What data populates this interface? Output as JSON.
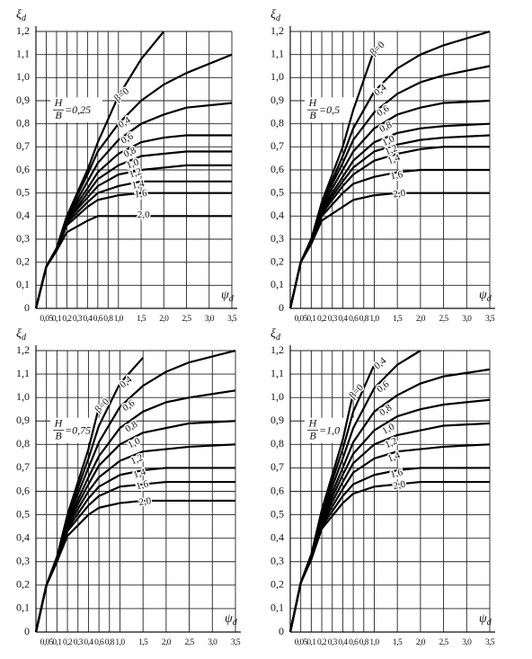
{
  "chart_data": [
    {
      "type": "line",
      "ylabel": "ξ",
      "ylabel_subscript": "d",
      "xlabel": "ψ",
      "xlabel_subscript": "d",
      "ratio_top": "H",
      "ratio_bottom": "B",
      "ratio_value": "=0,25",
      "color": "#000",
      "grid": true,
      "xlim": [
        0,
        3.5
      ],
      "ylim": [
        0,
        1.2
      ],
      "xticks": [
        {
          "value": 0.05,
          "label": "0,05"
        },
        {
          "value": 0.1,
          "label": "0,1"
        },
        {
          "value": 0.2,
          "label": "0,2"
        },
        {
          "value": 0.3,
          "label": "0,3"
        },
        {
          "value": 0.4,
          "label": "0,4"
        },
        {
          "value": 0.6,
          "label": "0,6"
        },
        {
          "value": 0.8,
          "label": "0,8"
        },
        {
          "value": 1.0,
          "label": "1,0"
        },
        {
          "value": 1.5,
          "label": "1,5"
        },
        {
          "value": 2.0,
          "label": "2,0"
        },
        {
          "value": 2.5,
          "label": "2,5"
        },
        {
          "value": 3.0,
          "label": "3,0"
        },
        {
          "value": 3.5,
          "label": "3,5"
        }
      ],
      "yticks": [
        0,
        {
          "value": 0.1,
          "label": "0,1"
        },
        {
          "value": 0.2,
          "label": "0,2"
        },
        {
          "value": 0.3,
          "label": "0,3"
        },
        {
          "value": 0.4,
          "label": "0,4"
        },
        {
          "value": 0.5,
          "label": "0,5"
        },
        {
          "value": 0.6,
          "label": "0,6"
        },
        {
          "value": 0.7,
          "label": "0,7"
        },
        {
          "value": 0.8,
          "label": "0,8"
        },
        {
          "value": 0.9,
          "label": "0,9"
        },
        {
          "value": 1.0,
          "label": "1,0"
        },
        {
          "value": 1.1,
          "label": "1,1"
        },
        {
          "value": 1.2,
          "label": "1,2"
        }
      ],
      "x": [
        0,
        0.05,
        0.1,
        0.2,
        0.4,
        0.6,
        1.0,
        1.5,
        2.0,
        2.5,
        3.5
      ],
      "series": [
        {
          "name": "β=0",
          "values": [
            0,
            0.18,
            0.26,
            0.4,
            0.6,
            0.72,
            0.92,
            1.08,
            1.2,
            null,
            null
          ]
        },
        {
          "name": "0,4",
          "values": [
            0,
            0.18,
            0.26,
            0.4,
            0.58,
            0.68,
            0.8,
            0.9,
            0.97,
            1.02,
            1.1
          ]
        },
        {
          "name": "0,6",
          "values": [
            0,
            0.18,
            0.26,
            0.39,
            0.55,
            0.63,
            0.73,
            0.8,
            0.84,
            0.87,
            0.89
          ]
        },
        {
          "name": "0,8",
          "values": [
            0,
            0.18,
            0.26,
            0.39,
            0.52,
            0.59,
            0.67,
            0.72,
            0.74,
            0.75,
            0.75
          ]
        },
        {
          "name": "1,0",
          "values": [
            0,
            0.18,
            0.26,
            0.38,
            0.5,
            0.56,
            0.62,
            0.66,
            0.67,
            0.68,
            0.68
          ]
        },
        {
          "name": "1,2",
          "values": [
            0,
            0.18,
            0.26,
            0.38,
            0.48,
            0.53,
            0.58,
            0.6,
            0.61,
            0.62,
            0.62
          ]
        },
        {
          "name": "1,4",
          "values": [
            0,
            0.18,
            0.25,
            0.37,
            0.46,
            0.5,
            0.53,
            0.55,
            0.55,
            0.55,
            0.55
          ]
        },
        {
          "name": "1,6",
          "values": [
            0,
            0.18,
            0.25,
            0.36,
            0.44,
            0.47,
            0.49,
            0.5,
            0.5,
            0.5,
            0.5
          ]
        },
        {
          "name": "2,0",
          "values": [
            0,
            0.18,
            0.25,
            0.33,
            0.38,
            0.4,
            0.4,
            0.4,
            0.4,
            0.4,
            0.4
          ]
        }
      ]
    },
    {
      "type": "line",
      "ylabel": "ξ",
      "ylabel_subscript": "d",
      "xlabel": "ψ",
      "xlabel_subscript": "d",
      "ratio_top": "H",
      "ratio_bottom": "B",
      "ratio_value": "=0,5",
      "color": "#000",
      "grid": true,
      "xlim": [
        0,
        3.5
      ],
      "ylim": [
        0,
        1.2
      ],
      "xticks": [
        {
          "value": 0.05,
          "label": "0,05"
        },
        {
          "value": 0.1,
          "label": "0,1"
        },
        {
          "value": 0.2,
          "label": "0,2"
        },
        {
          "value": 0.3,
          "label": "0,3"
        },
        {
          "value": 0.4,
          "label": "0,4"
        },
        {
          "value": 0.6,
          "label": "0,6"
        },
        {
          "value": 0.8,
          "label": "0,8"
        },
        {
          "value": 1.0,
          "label": "1,0"
        },
        {
          "value": 1.5,
          "label": "1,5"
        },
        {
          "value": 2.0,
          "label": "2,0"
        },
        {
          "value": 2.5,
          "label": "2,5"
        },
        {
          "value": 3.0,
          "label": "3,0"
        },
        {
          "value": 3.5,
          "label": "3,5"
        }
      ],
      "yticks": [
        0,
        {
          "value": 0.1,
          "label": "0,1"
        },
        {
          "value": 0.2,
          "label": "0,2"
        },
        {
          "value": 0.3,
          "label": "0,3"
        },
        {
          "value": 0.4,
          "label": "0,4"
        },
        {
          "value": 0.5,
          "label": "0,5"
        },
        {
          "value": 0.6,
          "label": "0,6"
        },
        {
          "value": 0.7,
          "label": "0,7"
        },
        {
          "value": 0.8,
          "label": "0,8"
        },
        {
          "value": 0.9,
          "label": "0,9"
        },
        {
          "value": 1.0,
          "label": "1,0"
        },
        {
          "value": 1.1,
          "label": "1,1"
        },
        {
          "value": 1.2,
          "label": "1,2"
        }
      ],
      "x": [
        0,
        0.05,
        0.1,
        0.2,
        0.4,
        0.6,
        1.0,
        1.5,
        2.0,
        2.5,
        3.5
      ],
      "series": [
        {
          "name": "β=0",
          "values": [
            0,
            0.2,
            0.3,
            0.46,
            0.7,
            0.86,
            1.12,
            null,
            null,
            null,
            null
          ]
        },
        {
          "name": "0,4",
          "values": [
            0,
            0.2,
            0.3,
            0.45,
            0.66,
            0.78,
            0.94,
            1.04,
            1.1,
            1.14,
            1.2
          ]
        },
        {
          "name": "0,6",
          "values": [
            0,
            0.2,
            0.3,
            0.45,
            0.63,
            0.73,
            0.85,
            0.93,
            0.98,
            1.01,
            1.05
          ]
        },
        {
          "name": "0,8",
          "values": [
            0,
            0.2,
            0.3,
            0.44,
            0.6,
            0.68,
            0.78,
            0.84,
            0.87,
            0.89,
            0.9
          ]
        },
        {
          "name": "1,0",
          "values": [
            0,
            0.2,
            0.29,
            0.43,
            0.57,
            0.64,
            0.72,
            0.76,
            0.78,
            0.79,
            0.8
          ]
        },
        {
          "name": "1,2",
          "values": [
            0,
            0.2,
            0.29,
            0.42,
            0.55,
            0.61,
            0.68,
            0.71,
            0.73,
            0.74,
            0.75
          ]
        },
        {
          "name": "1,4",
          "values": [
            0,
            0.2,
            0.29,
            0.41,
            0.53,
            0.58,
            0.64,
            0.67,
            0.69,
            0.7,
            0.7
          ]
        },
        {
          "name": "1,6",
          "values": [
            0,
            0.2,
            0.28,
            0.4,
            0.5,
            0.54,
            0.57,
            0.59,
            0.6,
            0.6,
            0.6
          ]
        },
        {
          "name": "2,0",
          "values": [
            0,
            0.2,
            0.28,
            0.38,
            0.44,
            0.47,
            0.49,
            0.5,
            0.5,
            0.5,
            0.5
          ]
        }
      ]
    },
    {
      "type": "line",
      "ylabel": "ξ",
      "ylabel_subscript": "d",
      "xlabel": "ψ",
      "xlabel_subscript": "d",
      "ratio_top": "H",
      "ratio_bottom": "B",
      "ratio_value": "=0,75",
      "color": "#000",
      "grid": true,
      "xlim": [
        0,
        3.5
      ],
      "ylim": [
        0,
        1.2
      ],
      "xticks": [
        {
          "value": 0.05,
          "label": "0,05"
        },
        {
          "value": 0.1,
          "label": "0,1"
        },
        {
          "value": 0.2,
          "label": "0,2"
        },
        {
          "value": 0.3,
          "label": "0,3"
        },
        {
          "value": 0.4,
          "label": "0,4"
        },
        {
          "value": 0.6,
          "label": "0,6"
        },
        {
          "value": 0.8,
          "label": "0,8"
        },
        {
          "value": 1.0,
          "label": "1,0"
        },
        {
          "value": 1.5,
          "label": "1,5"
        },
        {
          "value": 2.0,
          "label": "2,0"
        },
        {
          "value": 2.5,
          "label": "2,5"
        },
        {
          "value": 3.0,
          "label": "3,0"
        },
        {
          "value": 3.5,
          "label": "3,5"
        }
      ],
      "yticks": [
        0,
        {
          "value": 0.1,
          "label": "0,1"
        },
        {
          "value": 0.2,
          "label": "0,2"
        },
        {
          "value": 0.3,
          "label": "0,3"
        },
        {
          "value": 0.4,
          "label": "0,4"
        },
        {
          "value": 0.5,
          "label": "0,5"
        },
        {
          "value": 0.6,
          "label": "0,6"
        },
        {
          "value": 0.7,
          "label": "0,7"
        },
        {
          "value": 0.8,
          "label": "0,8"
        },
        {
          "value": 0.9,
          "label": "0,9"
        },
        {
          "value": 1.0,
          "label": "1,0"
        },
        {
          "value": 1.1,
          "label": "1,1"
        },
        {
          "value": 1.2,
          "label": "1,2"
        }
      ],
      "x": [
        0,
        0.05,
        0.1,
        0.2,
        0.4,
        0.6,
        1.0,
        1.5,
        2.0,
        2.5,
        3.5
      ],
      "series": [
        {
          "name": "β=0",
          "values": [
            0,
            0.2,
            0.32,
            0.5,
            0.78,
            0.96,
            null,
            null,
            null,
            null,
            null
          ]
        },
        {
          "name": "0,4",
          "values": [
            0,
            0.2,
            0.32,
            0.49,
            0.74,
            0.88,
            1.06,
            1.17,
            null,
            null,
            null
          ]
        },
        {
          "name": "0,6",
          "values": [
            0,
            0.2,
            0.31,
            0.48,
            0.7,
            0.81,
            0.96,
            1.05,
            1.11,
            1.15,
            1.2
          ]
        },
        {
          "name": "0,8",
          "values": [
            0,
            0.2,
            0.31,
            0.47,
            0.66,
            0.75,
            0.87,
            0.94,
            0.98,
            1.0,
            1.03
          ]
        },
        {
          "name": "1,0",
          "values": [
            0,
            0.2,
            0.31,
            0.46,
            0.63,
            0.71,
            0.8,
            0.85,
            0.87,
            0.89,
            0.9
          ]
        },
        {
          "name": "1,2",
          "values": [
            0,
            0.2,
            0.3,
            0.45,
            0.6,
            0.66,
            0.73,
            0.77,
            0.78,
            0.79,
            0.8
          ]
        },
        {
          "name": "1,4",
          "values": [
            0,
            0.2,
            0.3,
            0.44,
            0.57,
            0.62,
            0.67,
            0.69,
            0.7,
            0.7,
            0.7
          ]
        },
        {
          "name": "1,6",
          "values": [
            0,
            0.2,
            0.3,
            0.43,
            0.54,
            0.58,
            0.62,
            0.63,
            0.64,
            0.64,
            0.64
          ]
        },
        {
          "name": "2,0",
          "values": [
            0,
            0.2,
            0.3,
            0.41,
            0.5,
            0.53,
            0.55,
            0.56,
            0.56,
            0.56,
            0.56
          ]
        }
      ]
    },
    {
      "type": "line",
      "ylabel": "ξ",
      "ylabel_subscript": "d",
      "xlabel": "ψ",
      "xlabel_subscript": "d",
      "ratio_top": "H",
      "ratio_bottom": "B",
      "ratio_value": "=1,0",
      "color": "#000",
      "grid": true,
      "xlim": [
        0,
        3.5
      ],
      "ylim": [
        0,
        1.2
      ],
      "xticks": [
        {
          "value": 0.05,
          "label": "0,05"
        },
        {
          "value": 0.1,
          "label": "0,1"
        },
        {
          "value": 0.2,
          "label": "0,2"
        },
        {
          "value": 0.3,
          "label": "0,3"
        },
        {
          "value": 0.4,
          "label": "0,4"
        },
        {
          "value": 0.6,
          "label": "0,6"
        },
        {
          "value": 0.8,
          "label": "0,8"
        },
        {
          "value": 1.0,
          "label": "1,0"
        },
        {
          "value": 1.5,
          "label": "1,5"
        },
        {
          "value": 2.0,
          "label": "2,0"
        },
        {
          "value": 2.5,
          "label": "2,5"
        },
        {
          "value": 3.0,
          "label": "3,0"
        },
        {
          "value": 3.5,
          "label": "3,5"
        }
      ],
      "yticks": [
        0,
        {
          "value": 0.1,
          "label": "0,1"
        },
        {
          "value": 0.2,
          "label": "0,2"
        },
        {
          "value": 0.3,
          "label": "0,3"
        },
        {
          "value": 0.4,
          "label": "0,4"
        },
        {
          "value": 0.5,
          "label": "0,5"
        },
        {
          "value": 0.6,
          "label": "0,6"
        },
        {
          "value": 0.7,
          "label": "0,7"
        },
        {
          "value": 0.8,
          "label": "0,8"
        },
        {
          "value": 0.9,
          "label": "0,9"
        },
        {
          "value": 1.0,
          "label": "1,0"
        },
        {
          "value": 1.1,
          "label": "1,1"
        },
        {
          "value": 1.2,
          "label": "1,2"
        }
      ],
      "x": [
        0,
        0.05,
        0.1,
        0.2,
        0.4,
        0.6,
        1.0,
        1.5,
        2.0,
        2.5,
        3.5
      ],
      "series": [
        {
          "name": "β=0",
          "values": [
            0,
            0.21,
            0.33,
            0.52,
            0.82,
            1.02,
            null,
            null,
            null,
            null,
            null
          ]
        },
        {
          "name": "0,4",
          "values": [
            0,
            0.21,
            0.33,
            0.51,
            0.78,
            0.94,
            1.14,
            null,
            null,
            null,
            null
          ]
        },
        {
          "name": "0,6",
          "values": [
            0,
            0.21,
            0.33,
            0.5,
            0.74,
            0.87,
            1.04,
            1.14,
            1.2,
            null,
            null
          ]
        },
        {
          "name": "0,8",
          "values": [
            0,
            0.21,
            0.32,
            0.49,
            0.7,
            0.81,
            0.94,
            1.01,
            1.06,
            1.09,
            1.12
          ]
        },
        {
          "name": "1,0",
          "values": [
            0,
            0.21,
            0.32,
            0.48,
            0.67,
            0.76,
            0.86,
            0.92,
            0.95,
            0.97,
            0.99
          ]
        },
        {
          "name": "1,2",
          "values": [
            0,
            0.21,
            0.32,
            0.47,
            0.64,
            0.72,
            0.8,
            0.84,
            0.86,
            0.88,
            0.89
          ]
        },
        {
          "name": "1,4",
          "values": [
            0,
            0.21,
            0.31,
            0.46,
            0.61,
            0.68,
            0.74,
            0.77,
            0.78,
            0.79,
            0.8
          ]
        },
        {
          "name": "1,6",
          "values": [
            0,
            0.21,
            0.31,
            0.45,
            0.58,
            0.63,
            0.67,
            0.69,
            0.7,
            0.7,
            0.7
          ]
        },
        {
          "name": "2,0",
          "values": [
            0,
            0.21,
            0.31,
            0.44,
            0.55,
            0.59,
            0.62,
            0.63,
            0.64,
            0.64,
            0.64
          ]
        }
      ]
    }
  ]
}
